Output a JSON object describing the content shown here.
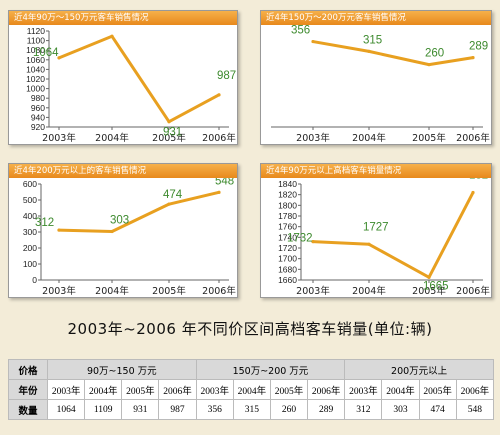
{
  "colors": {
    "line": "#e8a020",
    "label": "#3d8a2e",
    "title_bar": "#ee9a2e"
  },
  "main_title": "2003年~2006 年不同价区间高档客车销量(单位:辆)",
  "chart_data": [
    {
      "type": "line",
      "title": "近4年90万～150万元客车销售情况",
      "categories": [
        "2003年",
        "2004年",
        "2005年",
        "2006年"
      ],
      "values": [
        1064,
        1109,
        931,
        987
      ],
      "ylim": [
        920,
        1120
      ],
      "yticks": [
        920,
        940,
        960,
        980,
        1000,
        1020,
        1040,
        1060,
        1080,
        1100,
        1120
      ],
      "show_y_axis": true
    },
    {
      "type": "line",
      "title": "近4年150万～200万元客车销售情况",
      "categories": [
        "2003年",
        "2004年",
        "2005年",
        "2006年"
      ],
      "values": [
        356,
        315,
        260,
        289
      ],
      "ylim": [
        0,
        400
      ],
      "yticks": [],
      "show_y_axis": false
    },
    {
      "type": "line",
      "title": "近4年200万元以上的客车销售情况",
      "categories": [
        "2003年",
        "2004年",
        "2005年",
        "2006年"
      ],
      "values": [
        312,
        303,
        474,
        548
      ],
      "ylim": [
        0,
        600
      ],
      "yticks": [
        0,
        100,
        200,
        300,
        400,
        500,
        600
      ],
      "show_y_axis": true
    },
    {
      "type": "line",
      "title": "近4年90万元以上高档客车销量情况",
      "categories": [
        "2003年",
        "2004年",
        "2005年",
        "2006年"
      ],
      "values": [
        1732,
        1727,
        1665,
        1824
      ],
      "ylim": [
        1660,
        1840
      ],
      "yticks": [
        1660,
        1680,
        1700,
        1720,
        1740,
        1760,
        1780,
        1800,
        1820,
        1840
      ],
      "show_y_axis": true
    }
  ],
  "table": {
    "price_label": "价格",
    "year_label": "年份",
    "qty_label": "数量",
    "groups": [
      "90万~150 万元",
      "150万~200 万元",
      "200万元以上"
    ],
    "years": [
      "2003年",
      "2004年",
      "2005年",
      "2006年",
      "2003年",
      "2004年",
      "2005年",
      "2006年",
      "2003年",
      "2004年",
      "2005年",
      "2006年"
    ],
    "quantities": [
      "1064",
      "1109",
      "931",
      "987",
      "356",
      "315",
      "260",
      "289",
      "312",
      "303",
      "474",
      "548"
    ]
  }
}
